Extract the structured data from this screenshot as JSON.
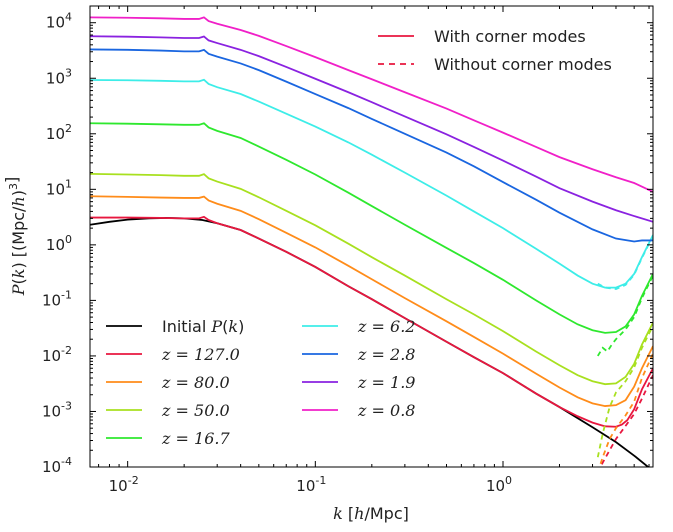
{
  "chart_data": {
    "type": "line",
    "xlabel": "k [h/Mpc]",
    "ylabel": "P(k) [(Mpc/h)^3]",
    "xscale": "log",
    "yscale": "log",
    "xlim": [
      0.0063,
      6.3
    ],
    "ylim": [
      0.0001,
      20000
    ],
    "grid": false,
    "x_ticks": [
      {
        "value": 0.01,
        "base": "10",
        "exp": "-2"
      },
      {
        "value": 0.1,
        "base": "10",
        "exp": "-1"
      },
      {
        "value": 1,
        "base": "10",
        "exp": "0"
      }
    ],
    "y_ticks": [
      {
        "value": 0.0001,
        "base": "10",
        "exp": "-4"
      },
      {
        "value": 0.001,
        "base": "10",
        "exp": "-3"
      },
      {
        "value": 0.01,
        "base": "10",
        "exp": "-2"
      },
      {
        "value": 0.1,
        "base": "10",
        "exp": "-1"
      },
      {
        "value": 1,
        "base": "10",
        "exp": "0"
      },
      {
        "value": 10,
        "base": "10",
        "exp": "1"
      },
      {
        "value": 100,
        "base": "10",
        "exp": "2"
      },
      {
        "value": 1000,
        "base": "10",
        "exp": "3"
      },
      {
        "value": 10000,
        "base": "10",
        "exp": "4"
      }
    ],
    "style_legend": {
      "placement": "top-right",
      "entries": [
        {
          "label": "With corner modes",
          "color": "#e8173f",
          "dash": "solid"
        },
        {
          "label": "Without corner modes",
          "color": "#e8173f",
          "dash": "dashed"
        }
      ]
    },
    "legend": {
      "placement": "bottom-left",
      "columns": 2
    },
    "initial": {
      "name": "Initial P(k)",
      "color": "#000000",
      "x": [
        0.0063,
        0.008,
        0.01,
        0.013,
        0.016,
        0.02,
        0.025,
        0.03,
        0.04,
        0.05,
        0.07,
        0.1,
        0.15,
        0.2,
        0.3,
        0.5,
        0.7,
        1.0,
        1.5,
        2,
        3,
        4,
        5,
        6.3
      ],
      "y": [
        2.3,
        2.6,
        2.85,
        3.0,
        3.05,
        3.0,
        2.8,
        2.45,
        1.85,
        1.3,
        0.75,
        0.4,
        0.18,
        0.105,
        0.048,
        0.018,
        0.0095,
        0.0049,
        0.0021,
        0.0012,
        0.00052,
        0.00028,
        0.00016,
        8.5e-05
      ]
    },
    "series": [
      {
        "name": "z = 127.0",
        "color": "#e8173f",
        "x": [
          0.0063,
          0.01,
          0.015,
          0.02,
          0.024,
          0.0255,
          0.027,
          0.03,
          0.04,
          0.05,
          0.07,
          0.1,
          0.15,
          0.2,
          0.3,
          0.5,
          0.7,
          1.0,
          1.5,
          2,
          2.5,
          3,
          3.5,
          4,
          4.3,
          4.6,
          5,
          5.5,
          6.3
        ],
        "y": [
          3.1,
          3.1,
          3.05,
          3.0,
          3.0,
          3.2,
          2.8,
          2.45,
          1.85,
          1.3,
          0.75,
          0.4,
          0.18,
          0.105,
          0.048,
          0.018,
          0.0095,
          0.0049,
          0.0021,
          0.0012,
          0.00082,
          0.00063,
          0.00054,
          0.00053,
          0.00058,
          0.0007,
          0.0011,
          0.0025,
          0.006
        ],
        "dashed_x": [
          3.2,
          3.4,
          3.7,
          4.0,
          4.5,
          5.0,
          5.5,
          6.3
        ],
        "dashed_y": [
          8e-05,
          0.00012,
          0.0002,
          0.00032,
          0.00055,
          0.0009,
          0.0017,
          0.0045
        ]
      },
      {
        "name": "z = 80.0",
        "color": "#ff8c1a",
        "x": [
          0.0063,
          0.01,
          0.015,
          0.02,
          0.024,
          0.0255,
          0.027,
          0.03,
          0.04,
          0.05,
          0.07,
          0.1,
          0.15,
          0.2,
          0.3,
          0.5,
          0.7,
          1.0,
          1.5,
          2,
          2.5,
          3,
          3.5,
          4,
          4.5,
          5,
          5.5,
          6.3
        ],
        "y": [
          7.5,
          7.3,
          7.1,
          7.0,
          7.0,
          7.4,
          6.3,
          5.5,
          4.1,
          2.9,
          1.65,
          0.9,
          0.42,
          0.24,
          0.11,
          0.042,
          0.022,
          0.011,
          0.0048,
          0.0027,
          0.0018,
          0.0014,
          0.00125,
          0.0013,
          0.0016,
          0.0028,
          0.006,
          0.015
        ],
        "dashed_x": [
          3.2,
          3.4,
          3.7,
          4.0,
          4.5,
          5.0,
          5.5,
          6.3
        ],
        "dashed_y": [
          8e-05,
          0.00015,
          0.00032,
          0.0005,
          0.00085,
          0.0015,
          0.004,
          0.011
        ]
      },
      {
        "name": "z = 50.0",
        "color": "#a8e01f",
        "x": [
          0.0063,
          0.01,
          0.015,
          0.02,
          0.024,
          0.0255,
          0.027,
          0.03,
          0.04,
          0.05,
          0.07,
          0.1,
          0.15,
          0.2,
          0.3,
          0.5,
          0.7,
          1.0,
          1.5,
          2,
          2.5,
          3,
          3.5,
          4,
          4.5,
          5,
          5.5,
          6.3
        ],
        "y": [
          19.0,
          18.5,
          18.0,
          17.5,
          17.5,
          18.8,
          15.8,
          13.8,
          10.2,
          7.2,
          4.1,
          2.25,
          1.05,
          0.6,
          0.28,
          0.105,
          0.056,
          0.028,
          0.012,
          0.0068,
          0.0045,
          0.0035,
          0.0031,
          0.0032,
          0.0042,
          0.0072,
          0.016,
          0.04
        ],
        "dashed_x": [
          3.2,
          3.4,
          3.7,
          4.0,
          4.5,
          5.0,
          5.5,
          6.3
        ],
        "dashed_y": [
          0.00015,
          0.0004,
          0.0012,
          0.0022,
          0.0035,
          0.0062,
          0.014,
          0.035
        ]
      },
      {
        "name": "z = 16.7",
        "color": "#2ee82e",
        "x": [
          0.0063,
          0.01,
          0.015,
          0.02,
          0.024,
          0.0255,
          0.027,
          0.03,
          0.04,
          0.05,
          0.07,
          0.1,
          0.15,
          0.2,
          0.3,
          0.5,
          0.7,
          1.0,
          1.5,
          2,
          2.5,
          3,
          3.5,
          4,
          4.5,
          5,
          5.5,
          6.3
        ],
        "y": [
          155,
          152,
          148,
          145,
          145,
          155,
          130,
          113,
          84,
          59,
          34,
          18.5,
          8.7,
          5.0,
          2.3,
          0.88,
          0.47,
          0.235,
          0.1,
          0.056,
          0.037,
          0.029,
          0.026,
          0.027,
          0.034,
          0.056,
          0.12,
          0.3
        ],
        "dashed_x": [
          3.2,
          3.4,
          3.6,
          3.8,
          4.0,
          4.5,
          5.0,
          5.5,
          6.3
        ],
        "dashed_y": [
          0.01,
          0.014,
          0.012,
          0.016,
          0.02,
          0.03,
          0.05,
          0.11,
          0.28
        ]
      },
      {
        "name": "z = 6.2",
        "color": "#3dede8",
        "x": [
          0.0063,
          0.01,
          0.015,
          0.02,
          0.024,
          0.0255,
          0.027,
          0.03,
          0.04,
          0.05,
          0.07,
          0.1,
          0.15,
          0.2,
          0.3,
          0.5,
          0.7,
          1.0,
          1.5,
          2,
          2.5,
          3,
          3.5,
          4,
          4.5,
          5,
          5.5,
          6.3
        ],
        "y": [
          930,
          920,
          900,
          880,
          880,
          940,
          790,
          690,
          520,
          380,
          230,
          135,
          70,
          42,
          20,
          7.7,
          4.0,
          2.0,
          0.85,
          0.46,
          0.28,
          0.2,
          0.17,
          0.17,
          0.2,
          0.3,
          0.6,
          1.5
        ],
        "dashed_x": [
          3.2,
          3.5,
          4.0,
          4.5,
          5.0,
          5.5,
          6.3
        ],
        "dashed_y": [
          0.2,
          0.17,
          0.16,
          0.19,
          0.29,
          0.58,
          1.45
        ]
      },
      {
        "name": "z = 2.8",
        "color": "#1a66e0",
        "x": [
          0.0063,
          0.01,
          0.015,
          0.02,
          0.024,
          0.0255,
          0.027,
          0.03,
          0.04,
          0.05,
          0.07,
          0.1,
          0.15,
          0.2,
          0.3,
          0.5,
          0.7,
          1.0,
          1.5,
          2,
          3,
          4,
          5,
          5.5,
          6.3
        ],
        "y": [
          3300,
          3250,
          3150,
          3050,
          3050,
          3250,
          2750,
          2450,
          1850,
          1400,
          870,
          520,
          290,
          185,
          100,
          46,
          26,
          13.5,
          6.5,
          3.8,
          1.9,
          1.3,
          1.15,
          1.2,
          1.2
        ]
      },
      {
        "name": "z = 1.9",
        "color": "#8a22e0",
        "x": [
          0.0063,
          0.01,
          0.015,
          0.02,
          0.024,
          0.0255,
          0.027,
          0.03,
          0.04,
          0.05,
          0.07,
          0.1,
          0.15,
          0.2,
          0.3,
          0.5,
          0.7,
          1.0,
          1.5,
          2,
          3,
          4,
          5,
          6.3
        ],
        "y": [
          5700,
          5600,
          5450,
          5300,
          5300,
          5650,
          4800,
          4300,
          3250,
          2500,
          1600,
          980,
          560,
          370,
          205,
          98,
          58,
          33,
          17,
          10.5,
          6.0,
          4.2,
          3.3,
          2.6
        ]
      },
      {
        "name": "z = 0.8",
        "color": "#f020c8",
        "x": [
          0.0063,
          0.01,
          0.015,
          0.02,
          0.024,
          0.0255,
          0.027,
          0.03,
          0.04,
          0.05,
          0.07,
          0.1,
          0.15,
          0.2,
          0.3,
          0.5,
          0.7,
          1.0,
          1.5,
          2,
          3,
          4,
          5,
          6.3
        ],
        "y": [
          12500,
          12300,
          12000,
          11700,
          11700,
          12500,
          10700,
          9600,
          7400,
          5800,
          3800,
          2400,
          1400,
          960,
          560,
          285,
          175,
          105,
          58,
          38,
          23,
          16.5,
          13,
          9.0
        ]
      }
    ]
  }
}
